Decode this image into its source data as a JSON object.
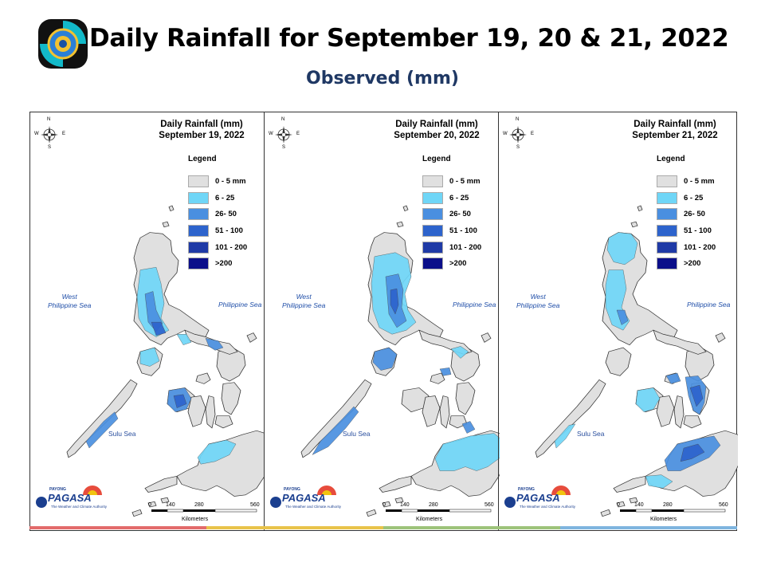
{
  "header": {
    "title": "Daily Rainfall for September 19, 20 & 21, 2022",
    "subtitle": "Observed (mm)"
  },
  "colors": {
    "r0_5": "#e0e0e0",
    "r6_25": "#6fd6f7",
    "r26_50": "#4a8fe0",
    "r51_100": "#2d63cc",
    "r101_200": "#1f3aa6",
    "r200": "#0b0f8a",
    "title_blue": "#1f3864"
  },
  "legend": {
    "heading": "Legend",
    "items": [
      {
        "label": "0 - 5 mm",
        "color": "#e0e0e0"
      },
      {
        "label": "6 - 25",
        "color": "#6fd6f7"
      },
      {
        "label": "26- 50",
        "color": "#4a8fe0"
      },
      {
        "label": "51 - 100",
        "color": "#2d63cc"
      },
      {
        "label": "101 - 200",
        "color": "#1f3aa6"
      },
      {
        "label": ">200",
        "color": "#0b0f8a"
      }
    ]
  },
  "labels": {
    "west_sea": "West\nPhilippine Sea",
    "phil_sea": "Philippine Sea",
    "sulu_sea": "Sulu Sea",
    "compass_n": "N",
    "compass_s": "S",
    "compass_w": "W",
    "compass_e": "E",
    "scale_ticks": [
      "0",
      "140",
      "280",
      "560"
    ],
    "scale_unit": "Kilometers",
    "pagasa": "PAGASA",
    "pagasa_tag": "PAYONG",
    "pagasa_sub": "The Weather and Climate Authority"
  },
  "panels": [
    {
      "heading": "Daily Rainfall (mm)",
      "date": "September 19, 2022"
    },
    {
      "heading": "Daily Rainfall (mm)",
      "date": "September 20, 2022"
    },
    {
      "heading": "Daily Rainfall (mm)",
      "date": "September 21, 2022"
    }
  ]
}
